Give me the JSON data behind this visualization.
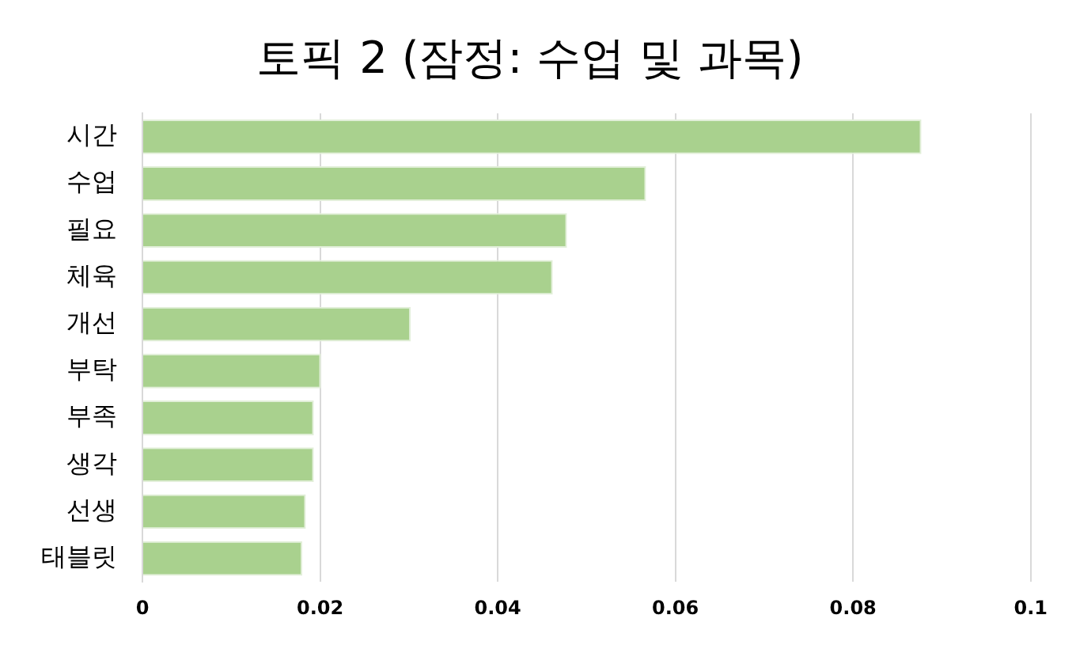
{
  "chart_data": {
    "type": "bar",
    "orientation": "horizontal",
    "title": "토픽 2 (잠정: 수업 및 과목)",
    "categories": [
      "시간",
      "수업",
      "필요",
      "체육",
      "개선",
      "부탁",
      "부족",
      "생각",
      "선생",
      "태블릿"
    ],
    "values": [
      0.0877,
      0.0567,
      0.0478,
      0.0462,
      0.0302,
      0.0201,
      0.0193,
      0.0193,
      0.0184,
      0.018
    ],
    "color": "#a9d18e",
    "xlim": [
      0,
      0.1
    ],
    "xticks": [
      0,
      0.02,
      0.04,
      0.06,
      0.08,
      0.1
    ],
    "grid": "x",
    "legend": false
  }
}
